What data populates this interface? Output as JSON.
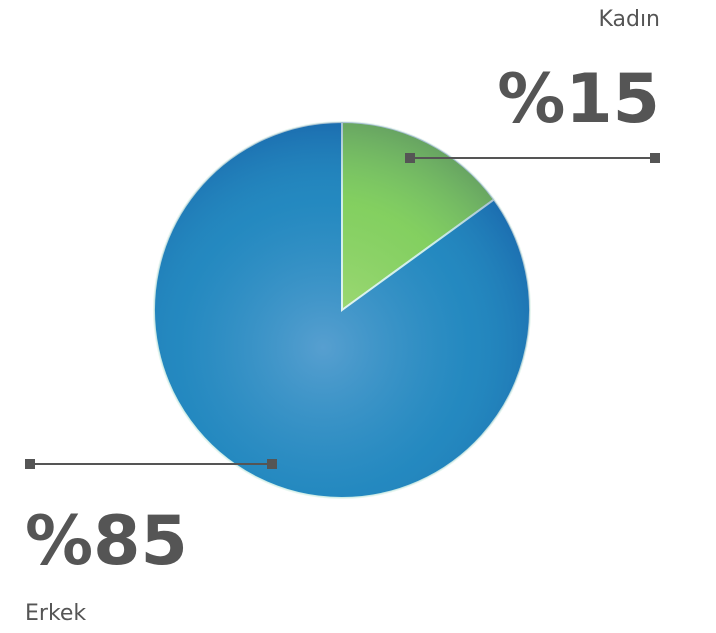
{
  "chart_data": {
    "type": "pie",
    "categories": [
      "Kadın",
      "Erkek"
    ],
    "values": [
      15,
      85
    ],
    "value_labels": [
      "%15",
      "%85"
    ],
    "colors": [
      "#8fd24f",
      "#1f7fc0"
    ]
  }
}
